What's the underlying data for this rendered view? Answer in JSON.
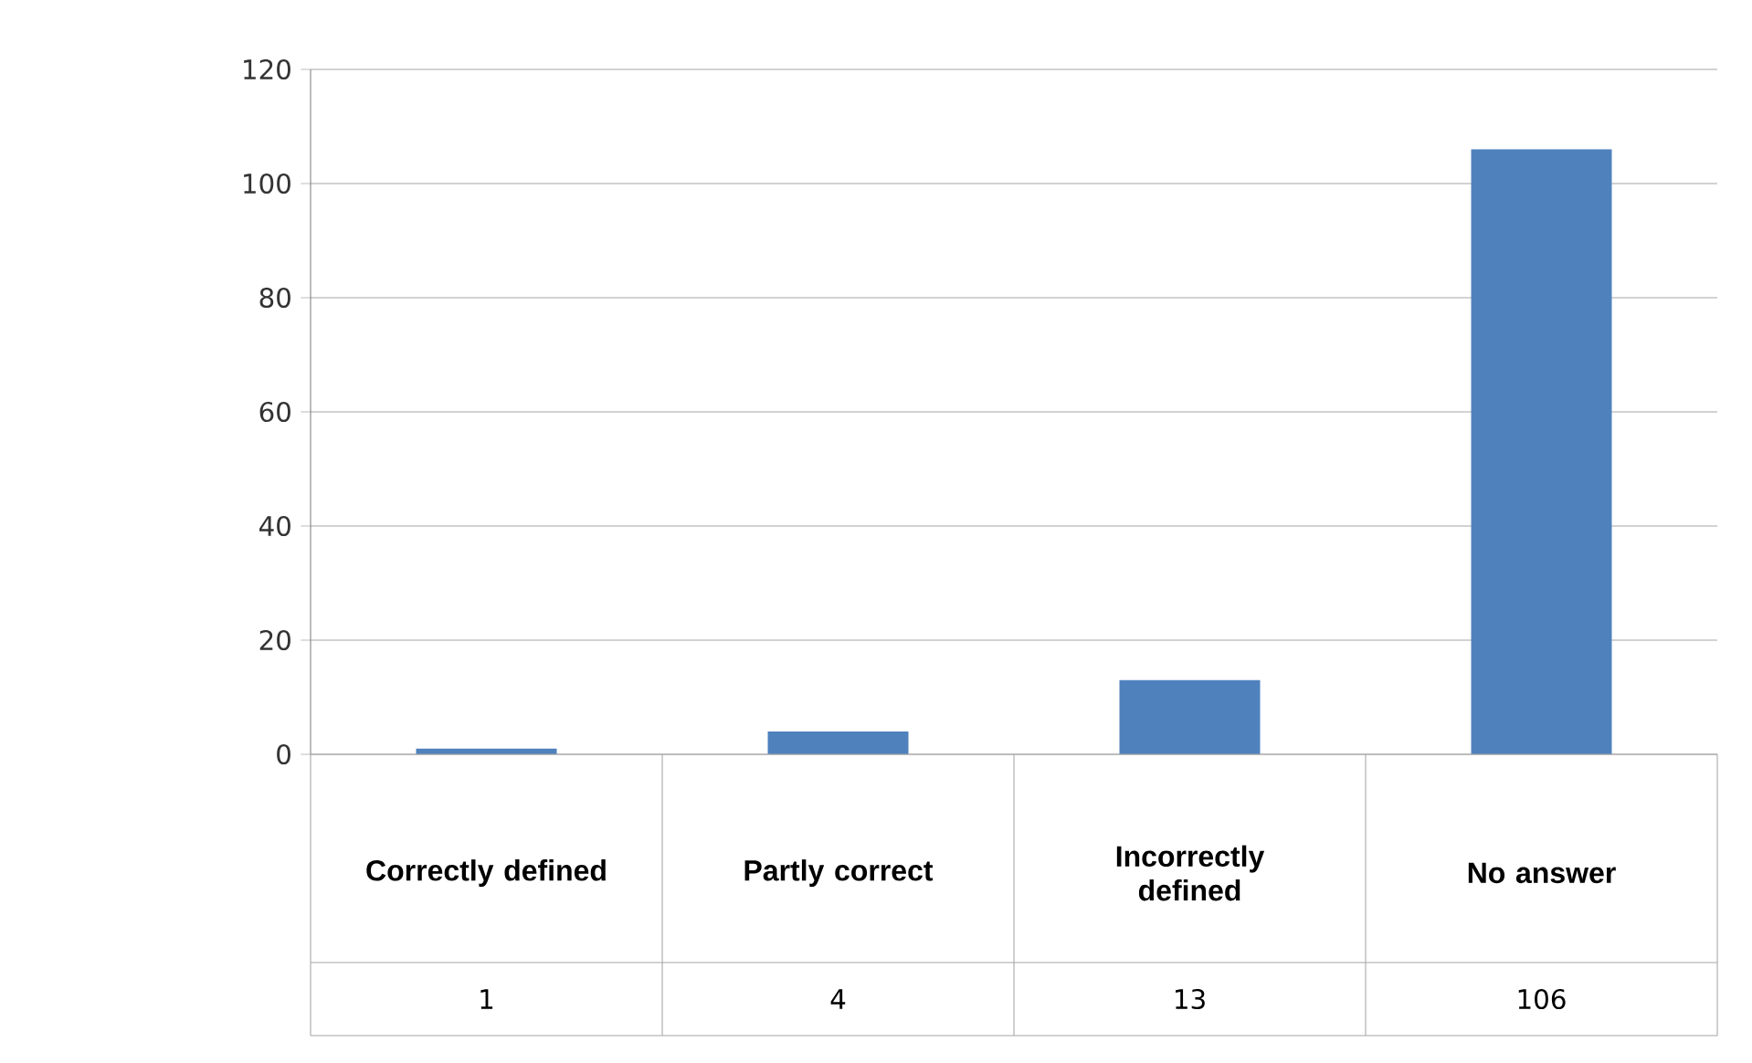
{
  "chart_data": {
    "type": "bar",
    "categories": [
      "Correctly defined",
      "Partly correct",
      "Incorrectly defined",
      "No answer"
    ],
    "values": [
      1,
      4,
      13,
      106
    ],
    "color": "#4f81bd",
    "ylim": [
      0,
      120
    ],
    "yticks": [
      0,
      20,
      40,
      60,
      80,
      100,
      120
    ],
    "grid": "y",
    "data_labels": true
  }
}
